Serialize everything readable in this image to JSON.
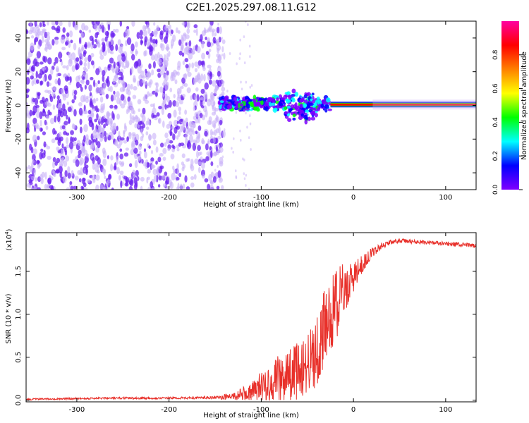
{
  "figure_title": "C2E1.2025.297.08.11.G12",
  "colors": {
    "line": "#e8302a",
    "purple": "#6a1ff0",
    "purple_light": "#c8b0f8",
    "colorbar": [
      "#7f00ff",
      "#0000ff",
      "#00ffff",
      "#00ff00",
      "#ffff00",
      "#ff8000",
      "#ff0000",
      "#ff00a0"
    ]
  },
  "chart_data": [
    {
      "type": "heatmap",
      "name": "spectrogram",
      "xlabel": "Height of straight line (km)",
      "ylabel": "Frequency (Hz)",
      "xlim": [
        -355,
        133
      ],
      "ylim": [
        -50,
        50
      ],
      "xticks": [
        -300,
        -200,
        -100,
        0,
        100
      ],
      "xtick_labels": [
        "-300",
        "-200",
        "-100",
        "0",
        "100"
      ],
      "yticks": [
        -40,
        -20,
        0,
        20,
        40
      ],
      "ytick_labels": [
        "-40",
        "-20",
        "0",
        "20",
        "40"
      ],
      "colorbar": {
        "label": "Normalized spectral amplitude",
        "range": [
          0,
          1
        ],
        "ticks": [
          0.0,
          0.2,
          0.4,
          0.6,
          0.8
        ],
        "tick_labels": [
          "0.0",
          "0.2",
          "0.4",
          "0.6",
          "0.8"
        ]
      },
      "features": [
        {
          "description": "diffuse purple noise",
          "x_range": [
            -355,
            -140
          ],
          "y_range": [
            -50,
            50
          ],
          "amplitude": 0.1
        },
        {
          "description": "multi-colored band near 0 Hz",
          "x_range": [
            -145,
            -25
          ],
          "y_center": 1,
          "amplitude": 0.4
        },
        {
          "description": "steady red line at ~0.5 Hz",
          "x_range": [
            -25,
            133
          ],
          "y_center": 0.5,
          "amplitude": 0.9
        }
      ]
    },
    {
      "type": "line",
      "name": "snr",
      "xlabel": "Height of straight line (km)",
      "ylabel": "SNR (10 * v/v)",
      "scale_label_base": "(x10",
      "scale_label_exp": "4",
      "scale_label_close": ")",
      "xlim": [
        -355,
        133
      ],
      "ylim": [
        -0.02,
        1.95
      ],
      "xticks": [
        -300,
        -200,
        -100,
        0,
        100
      ],
      "xtick_labels": [
        "-300",
        "-200",
        "-100",
        "0",
        "100"
      ],
      "yticks": [
        0.0,
        0.5,
        1.0,
        1.5
      ],
      "ytick_labels": [
        "0.0",
        "0.5",
        "1.0",
        "1.5"
      ],
      "series": [
        {
          "name": "SNR",
          "x": [
            -355,
            -300,
            -250,
            -200,
            -150,
            -130,
            -110,
            -100,
            -90,
            -80,
            -70,
            -60,
            -50,
            -40,
            -30,
            -20,
            -10,
            0,
            10,
            20,
            30,
            40,
            50,
            60,
            80,
            100,
            120,
            133
          ],
          "y": [
            0.01,
            0.02,
            0.025,
            0.025,
            0.03,
            0.05,
            0.1,
            0.18,
            0.22,
            0.28,
            0.32,
            0.38,
            0.45,
            0.62,
            0.9,
            1.15,
            1.32,
            1.45,
            1.6,
            1.72,
            1.8,
            1.84,
            1.86,
            1.85,
            1.84,
            1.82,
            1.81,
            1.8
          ],
          "noise_amplitude": [
            0.01,
            0.01,
            0.012,
            0.012,
            0.015,
            0.05,
            0.12,
            0.18,
            0.25,
            0.28,
            0.3,
            0.34,
            0.38,
            0.45,
            0.48,
            0.45,
            0.3,
            0.18,
            0.1,
            0.06,
            0.04,
            0.03,
            0.025,
            0.025,
            0.025,
            0.025,
            0.025,
            0.025
          ]
        }
      ]
    }
  ]
}
